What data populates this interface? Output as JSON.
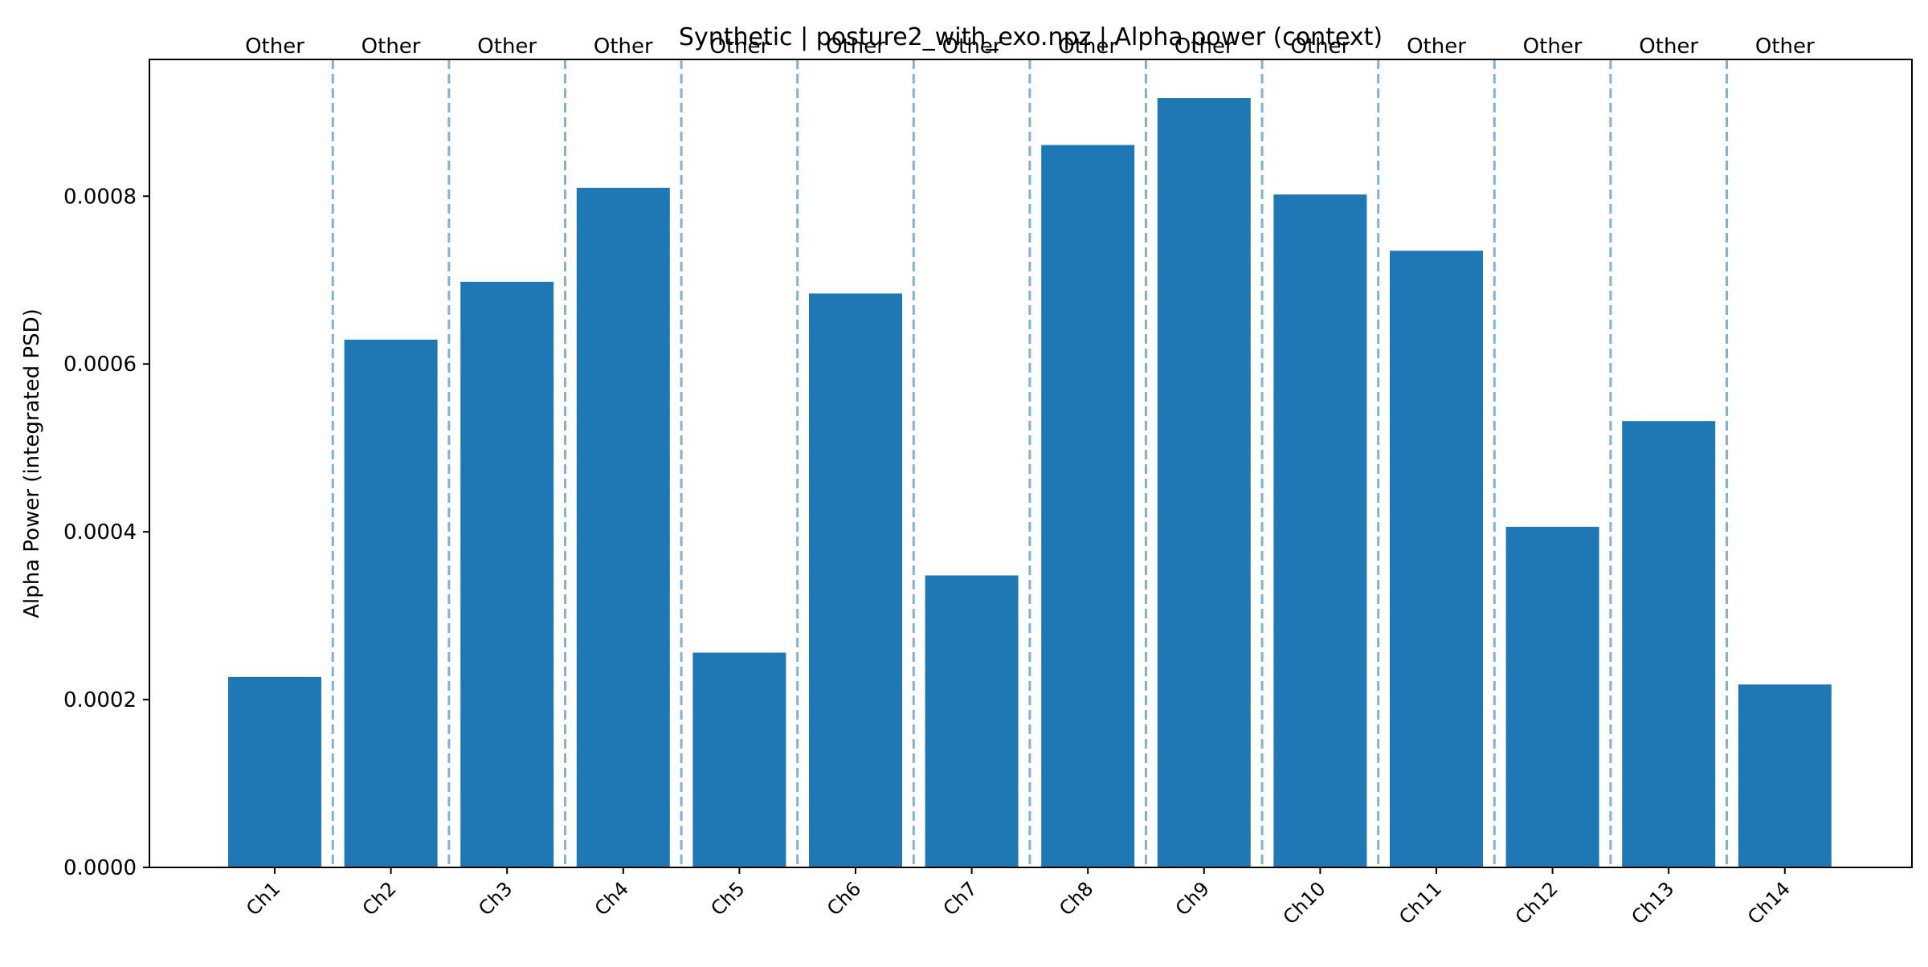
{
  "chart_data": {
    "type": "bar",
    "title": "Synthetic | posture2_with_exo.npz | Alpha power (context)",
    "xlabel": "",
    "ylabel": "Alpha Power (integrated PSD)",
    "categories": [
      "Ch1",
      "Ch2",
      "Ch3",
      "Ch4",
      "Ch5",
      "Ch6",
      "Ch7",
      "Ch8",
      "Ch9",
      "Ch10",
      "Ch11",
      "Ch12",
      "Ch13",
      "Ch14"
    ],
    "values": [
      0.000227,
      0.000629,
      0.000698,
      0.00081,
      0.000256,
      0.000684,
      0.000348,
      0.000861,
      0.000917,
      0.000802,
      0.000735,
      0.000406,
      0.000532,
      0.000218
    ],
    "group_labels": [
      "Other",
      "Other",
      "Other",
      "Other",
      "Other",
      "Other",
      "Other",
      "Other",
      "Other",
      "Other",
      "Other",
      "Other",
      "Other",
      "Other"
    ],
    "ylim": [
      0,
      0.000963
    ],
    "yticks": [
      0,
      0.0002,
      0.0004,
      0.0006,
      0.0008
    ],
    "ytick_labels": [
      "0.0000",
      "0.0002",
      "0.0004",
      "0.0006",
      "0.0008"
    ],
    "grid": false,
    "separators": "dashed vertical lines between channels",
    "colors": {
      "bar": "#1f77b4",
      "separator": "#7fb2d6",
      "axis": "#000000"
    }
  }
}
